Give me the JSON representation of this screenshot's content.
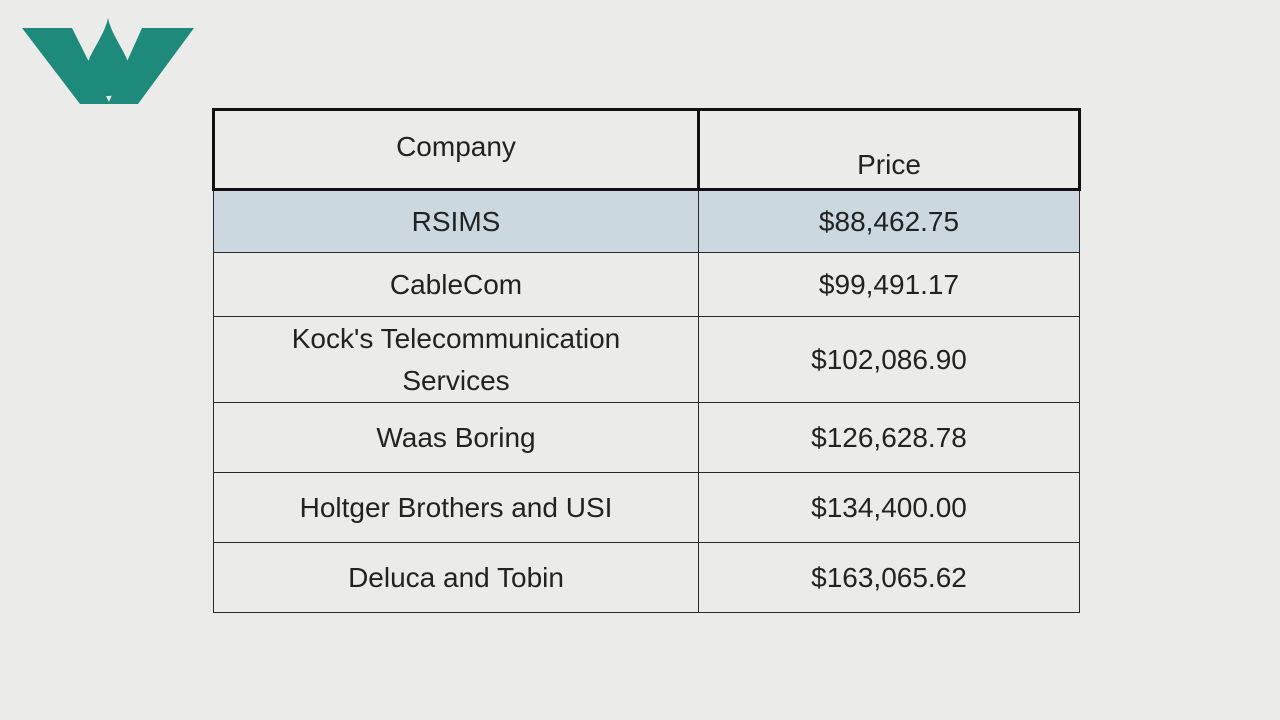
{
  "logo": {
    "icon": "water-drop-w-logo-icon",
    "color": "#1e8a7c"
  },
  "table": {
    "headers": {
      "company": "Company",
      "price": "Price"
    },
    "rows": [
      {
        "company": "RSIMS",
        "price": "$88,462.75",
        "highlighted": true
      },
      {
        "company": "CableCom",
        "price": "$99,491.17"
      },
      {
        "company": "Kock's Telecommunication Services",
        "price": "$102,086.90"
      },
      {
        "company": "Waas Boring",
        "price": "$126,628.78"
      },
      {
        "company": "Holtger Brothers and USI",
        "price": "$134,400.00"
      },
      {
        "company": "Deluca and Tobin",
        "price": "$163,065.62"
      }
    ],
    "highlight_color": "#cbd8e0"
  }
}
